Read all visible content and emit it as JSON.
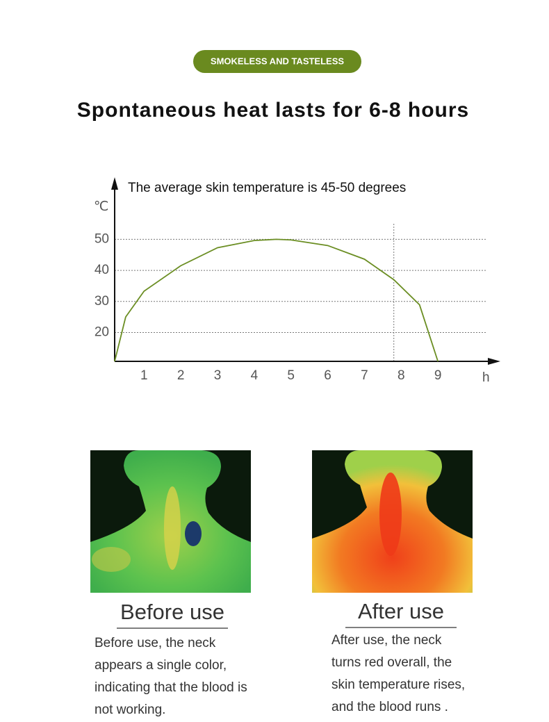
{
  "badge": "SMOKELESS AND TASTELESS",
  "title": "Spontaneous heat lasts for 6-8 hours",
  "chart_data": {
    "type": "line",
    "annotation": "The average skin temperature is 45-50 degrees",
    "y_label": "℃",
    "x_label": "h",
    "x": [
      0.2,
      0.5,
      1,
      2,
      3,
      4,
      4.6,
      5,
      6,
      7,
      7.8,
      8.5,
      9
    ],
    "series": [
      {
        "color": "#6b8e23",
        "values": [
          10.7,
          25,
          33.3,
          41.5,
          47.3,
          49.6,
          50,
          49.8,
          48,
          43.6,
          37,
          28.9,
          10.7
        ]
      }
    ],
    "xlim": [
      0.2,
      10.7
    ],
    "ylim": [
      10.7,
      70
    ],
    "xticks": [
      1,
      2,
      3,
      4,
      5,
      6,
      7,
      8,
      9
    ],
    "yticks": [
      20,
      30,
      40,
      50
    ],
    "grid": true,
    "vline": 7.8
  },
  "panels": [
    {
      "heading": "Before use",
      "lines": [
        "Before use, the neck",
        "appears a single color,",
        "indicating that the blood is",
        "not working."
      ]
    },
    {
      "heading": "After use",
      "lines": [
        "After use, the neck",
        "turns red overall, the",
        "skin temperature rises,",
        "and the blood runs ."
      ]
    }
  ]
}
